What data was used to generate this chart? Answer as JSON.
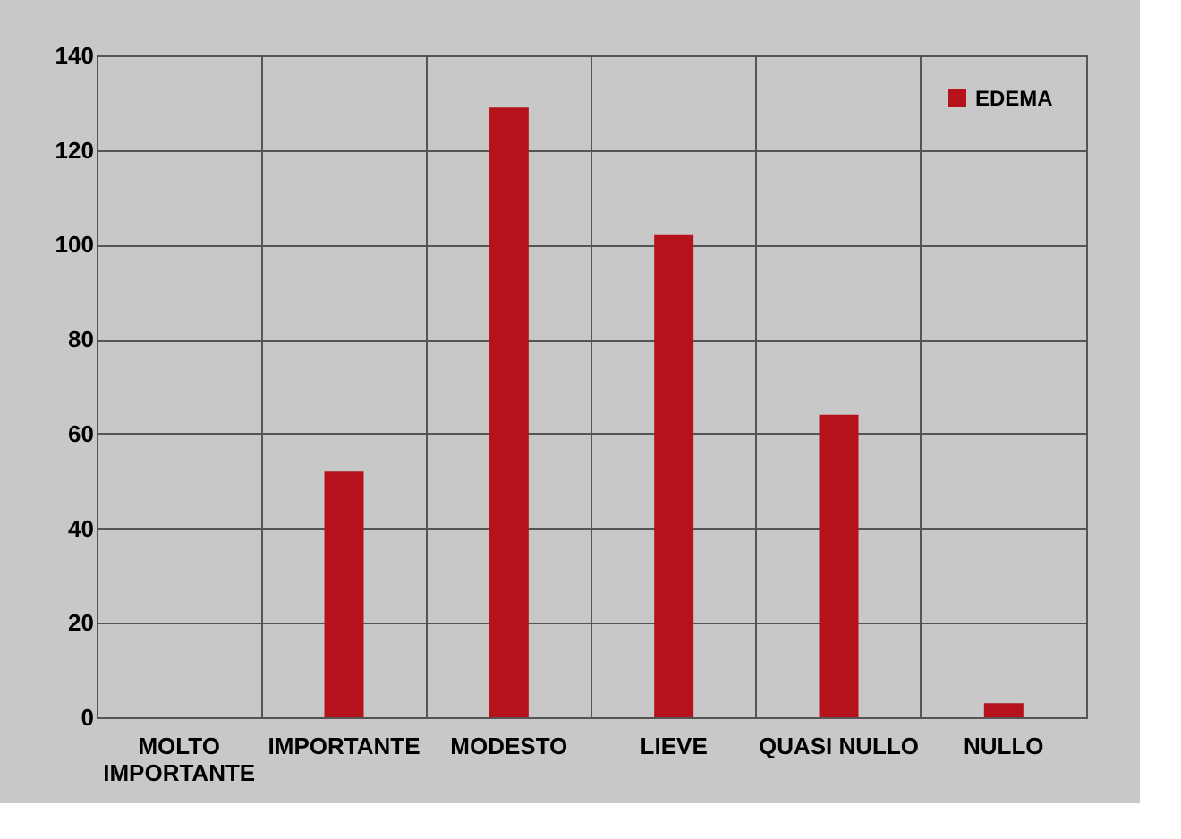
{
  "chart_data": {
    "type": "bar",
    "categories": [
      "MOLTO IMPORTANTE",
      "IMPORTANTE",
      "MODESTO",
      "LIEVE",
      "QUASI NULLO",
      "NULLO"
    ],
    "series": [
      {
        "name": "EDEMA",
        "color": "#b5121b",
        "values": [
          0,
          52,
          129,
          102,
          64,
          3
        ]
      }
    ],
    "ylim": [
      0,
      140
    ],
    "yticks": [
      0,
      20,
      40,
      60,
      80,
      100,
      120,
      140
    ],
    "grid": true,
    "legend": "top right"
  }
}
